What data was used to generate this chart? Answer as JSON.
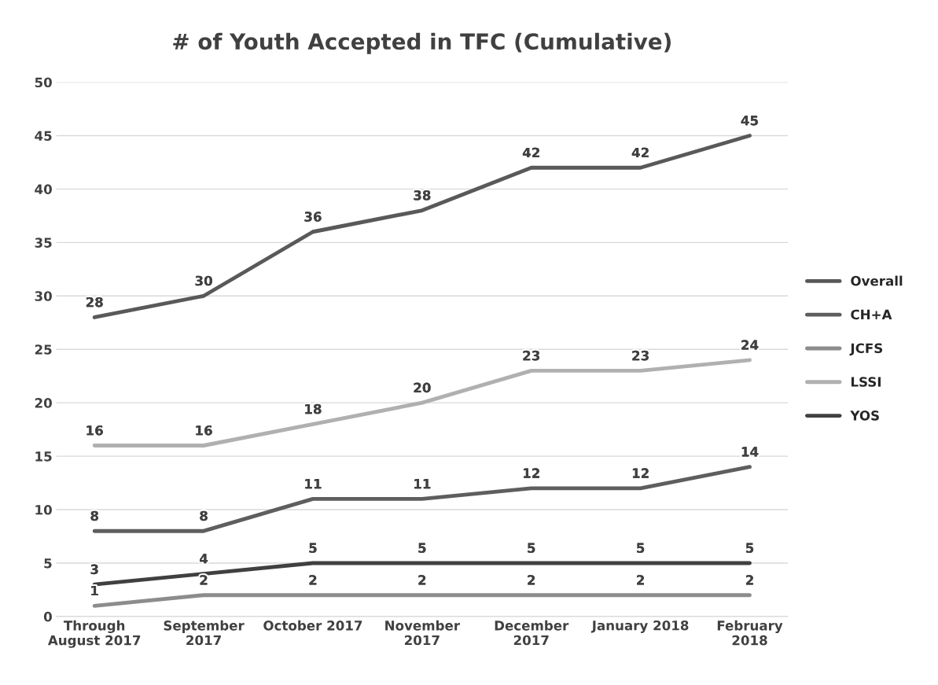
{
  "chart_data": {
    "type": "line",
    "title": "# of Youth Accepted in TFC (Cumulative)",
    "categories": [
      "Through\nAugust 2017",
      "September\n2017",
      "October 2017",
      "November\n2017",
      "December\n2017",
      "January 2018",
      "February\n2018"
    ],
    "series": [
      {
        "name": "Overall",
        "color": "#595959",
        "values": [
          28,
          30,
          36,
          38,
          42,
          42,
          45
        ]
      },
      {
        "name": "CH+A",
        "color": "#5e5e5e",
        "values": [
          8,
          8,
          11,
          11,
          12,
          12,
          14
        ]
      },
      {
        "name": "JCFS",
        "color": "#8c8c8c",
        "values": [
          1,
          2,
          2,
          2,
          2,
          2,
          2
        ]
      },
      {
        "name": "LSSI",
        "color": "#b0b0b0",
        "values": [
          16,
          16,
          18,
          20,
          23,
          23,
          24
        ]
      },
      {
        "name": "YOS",
        "color": "#404040",
        "values": [
          3,
          4,
          5,
          5,
          5,
          5,
          5
        ]
      }
    ],
    "ylim": [
      0,
      50
    ],
    "yticks": [
      0,
      5,
      10,
      15,
      20,
      25,
      30,
      35,
      40,
      45,
      50
    ],
    "grid": "y",
    "legend": "right",
    "data_labels": true,
    "marker": "none",
    "line_style": "solid"
  }
}
